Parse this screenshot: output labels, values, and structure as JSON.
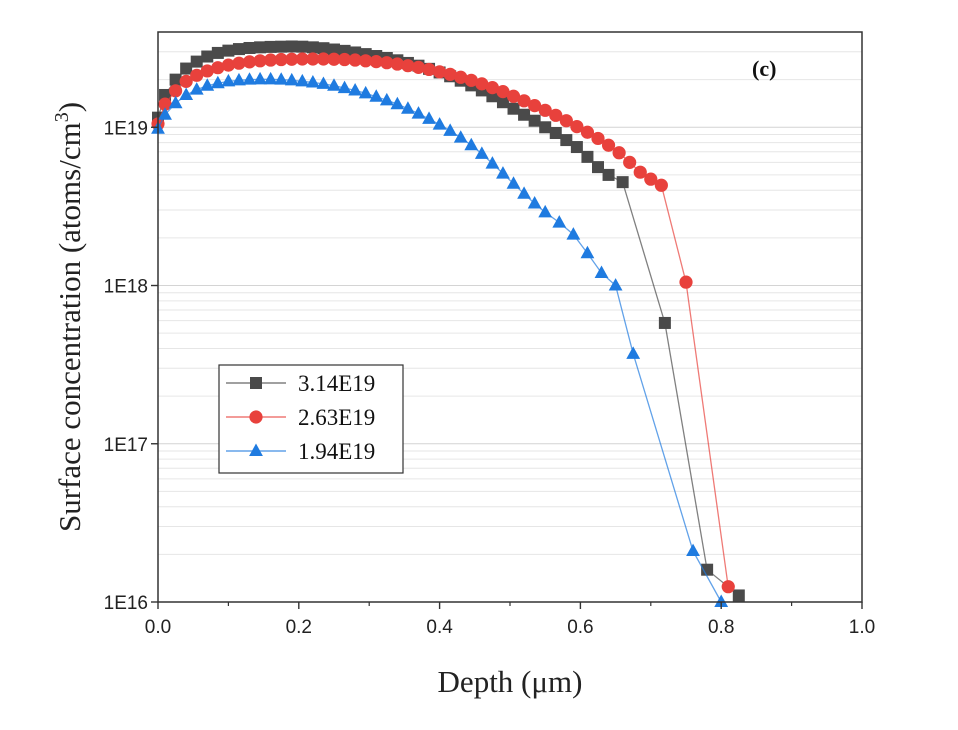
{
  "chart_data": {
    "type": "line",
    "panel_label": "(c)",
    "xlabel": "Depth (μm)",
    "ylabel_main": "Surface concentration (atoms/cm",
    "ylabel_sup": "3",
    "ylabel_close": ")",
    "xlim": [
      0.0,
      1.0
    ],
    "ylim": [
      1e+16,
      4e+19
    ],
    "y_scale": "log",
    "x_ticks": [
      "0.0",
      "0.2",
      "0.4",
      "0.6",
      "0.8",
      "1.0"
    ],
    "y_ticks": [
      "1E16",
      "1E17",
      "1E18",
      "1E19"
    ],
    "legend_position": "lower-left",
    "series": [
      {
        "name": "3.14E19",
        "color": "#4a4a4a",
        "marker": "square",
        "x": [
          0.0,
          0.01,
          0.025,
          0.04,
          0.055,
          0.07,
          0.085,
          0.1,
          0.115,
          0.13,
          0.145,
          0.16,
          0.175,
          0.19,
          0.205,
          0.22,
          0.235,
          0.25,
          0.265,
          0.28,
          0.295,
          0.31,
          0.325,
          0.34,
          0.355,
          0.37,
          0.385,
          0.4,
          0.415,
          0.43,
          0.445,
          0.46,
          0.475,
          0.49,
          0.505,
          0.52,
          0.535,
          0.55,
          0.565,
          0.58,
          0.595,
          0.61,
          0.625,
          0.64,
          0.66,
          0.72,
          0.78,
          0.825
        ],
        "y": [
          1.15e+19,
          1.6e+19,
          2e+19,
          2.35e+19,
          2.6e+19,
          2.8e+19,
          2.95e+19,
          3.05e+19,
          3.12e+19,
          3.17e+19,
          3.2e+19,
          3.22e+19,
          3.23e+19,
          3.24e+19,
          3.23e+19,
          3.2e+19,
          3.16e+19,
          3.1e+19,
          3.04e+19,
          2.97e+19,
          2.9e+19,
          2.82e+19,
          2.74e+19,
          2.65e+19,
          2.55e+19,
          2.45e+19,
          2.34e+19,
          2.22e+19,
          2.1e+19,
          1.97e+19,
          1.84e+19,
          1.71e+19,
          1.57e+19,
          1.44e+19,
          1.31e+19,
          1.2e+19,
          1.1e+19,
          1e+19,
          9.2e+18,
          8.3e+18,
          7.5e+18,
          6.5e+18,
          5.6e+18,
          5e+18,
          4.5e+18,
          5.8e+17,
          1.6e+16,
          1.1e+16
        ]
      },
      {
        "name": "2.63E19",
        "color": "#e8413c",
        "marker": "circle",
        "x": [
          0.0,
          0.01,
          0.025,
          0.04,
          0.055,
          0.07,
          0.085,
          0.1,
          0.115,
          0.13,
          0.145,
          0.16,
          0.175,
          0.19,
          0.205,
          0.22,
          0.235,
          0.25,
          0.265,
          0.28,
          0.295,
          0.31,
          0.325,
          0.34,
          0.355,
          0.37,
          0.385,
          0.4,
          0.415,
          0.43,
          0.445,
          0.46,
          0.475,
          0.49,
          0.505,
          0.52,
          0.535,
          0.55,
          0.565,
          0.58,
          0.595,
          0.61,
          0.625,
          0.64,
          0.655,
          0.67,
          0.685,
          0.7,
          0.715,
          0.75,
          0.81
        ],
        "y": [
          1.05e+19,
          1.4e+19,
          1.7e+19,
          1.95e+19,
          2.13e+19,
          2.27e+19,
          2.38e+19,
          2.47e+19,
          2.54e+19,
          2.59e+19,
          2.63e+19,
          2.66e+19,
          2.68e+19,
          2.69e+19,
          2.7e+19,
          2.7e+19,
          2.7e+19,
          2.69e+19,
          2.68e+19,
          2.66e+19,
          2.63e+19,
          2.6e+19,
          2.56e+19,
          2.51e+19,
          2.45e+19,
          2.39e+19,
          2.32e+19,
          2.24e+19,
          2.16e+19,
          2.07e+19,
          1.98e+19,
          1.88e+19,
          1.78e+19,
          1.68e+19,
          1.57e+19,
          1.47e+19,
          1.37e+19,
          1.28e+19,
          1.19e+19,
          1.1e+19,
          1.01e+19,
          9.3e+18,
          8.5e+18,
          7.7e+18,
          6.9e+18,
          6e+18,
          5.2e+18,
          4.7e+18,
          4.3e+18,
          1.05e+18,
          1.25e+16
        ]
      },
      {
        "name": "1.94E19",
        "color": "#1f7be0",
        "marker": "triangle",
        "x": [
          0.0,
          0.01,
          0.025,
          0.04,
          0.055,
          0.07,
          0.085,
          0.1,
          0.115,
          0.13,
          0.145,
          0.16,
          0.175,
          0.19,
          0.205,
          0.22,
          0.235,
          0.25,
          0.265,
          0.28,
          0.295,
          0.31,
          0.325,
          0.34,
          0.355,
          0.37,
          0.385,
          0.4,
          0.415,
          0.43,
          0.445,
          0.46,
          0.475,
          0.49,
          0.505,
          0.52,
          0.535,
          0.55,
          0.57,
          0.59,
          0.61,
          0.63,
          0.65,
          0.675,
          0.76,
          0.8
        ],
        "y": [
          9.8e+18,
          1.2e+19,
          1.42e+19,
          1.6e+19,
          1.73e+19,
          1.83e+19,
          1.9e+19,
          1.95e+19,
          1.98e+19,
          2e+19,
          2.01e+19,
          2.01e+19,
          2e+19,
          1.98e+19,
          1.95e+19,
          1.92e+19,
          1.88e+19,
          1.83e+19,
          1.77e+19,
          1.71e+19,
          1.64e+19,
          1.56e+19,
          1.48e+19,
          1.4e+19,
          1.31e+19,
          1.22e+19,
          1.13e+19,
          1.04e+19,
          9.5e+18,
          8.6e+18,
          7.7e+18,
          6.8e+18,
          5.9e+18,
          5.1e+18,
          4.4e+18,
          3.8e+18,
          3.3e+18,
          2.9e+18,
          2.5e+18,
          2.1e+18,
          1.6e+18,
          1.2e+18,
          1e+18,
          3.7e+17,
          2.1e+16,
          1e+16
        ]
      }
    ]
  }
}
